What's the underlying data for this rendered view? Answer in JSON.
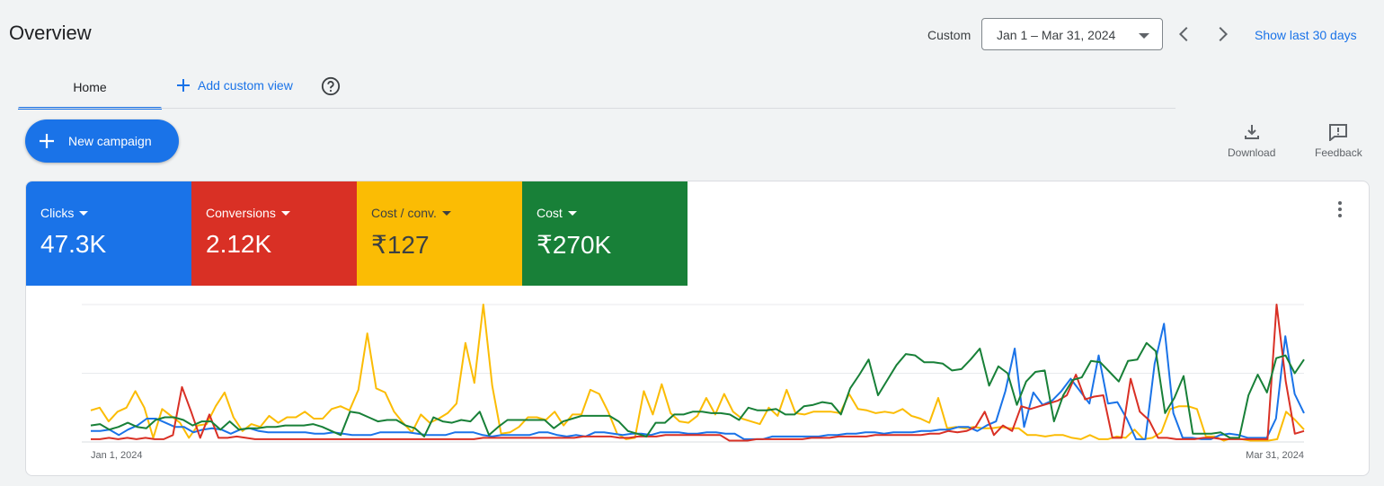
{
  "header": {
    "title": "Overview",
    "custom_label": "Custom",
    "date_range": "Jan 1 – Mar 31, 2024",
    "show_last": "Show last 30 days"
  },
  "tabs": {
    "home": "Home",
    "add_view": "Add custom view"
  },
  "actions": {
    "new_campaign": "New campaign",
    "download": "Download",
    "feedback": "Feedback"
  },
  "metrics": [
    {
      "label": "Clicks",
      "value": "47.3K",
      "color": "#1a73e8"
    },
    {
      "label": "Conversions",
      "value": "2.12K",
      "color": "#d93025"
    },
    {
      "label": "Cost / conv.",
      "value": "₹127",
      "color": "#fbbc04"
    },
    {
      "label": "Cost",
      "value": "₹270K",
      "color": "#188038"
    }
  ],
  "chart_data": {
    "type": "line",
    "x_start_label": "Jan 1, 2024",
    "x_end_label": "Mar 31, 2024",
    "ylim": [
      0,
      100
    ],
    "grid": true,
    "series": [
      {
        "color": "#fbbc04",
        "values": [
          23,
          25,
          15,
          22,
          25,
          37,
          25,
          3,
          24,
          19,
          14,
          3,
          12,
          13,
          26,
          36,
          18,
          8,
          13,
          11,
          19,
          14,
          18,
          18,
          22,
          17,
          17,
          24,
          26,
          23,
          38,
          79,
          39,
          36,
          22,
          14,
          7,
          20,
          14,
          17,
          21,
          28,
          72,
          43,
          100,
          41,
          6,
          7,
          11,
          18,
          18,
          16,
          22,
          12,
          20,
          20,
          38,
          35,
          22,
          6,
          2,
          3,
          37,
          20,
          42,
          21,
          15,
          14,
          19,
          32,
          20,
          35,
          22,
          17,
          15,
          13,
          25,
          19,
          38,
          21,
          20,
          22,
          22,
          22,
          21,
          35,
          24,
          23,
          21,
          22,
          21,
          24,
          19,
          17,
          14,
          32,
          10,
          11,
          10,
          11,
          10,
          10,
          11,
          10,
          10,
          5,
          5,
          4,
          5,
          5,
          3,
          2,
          5,
          2,
          2,
          4,
          3,
          9,
          2,
          3,
          7,
          24,
          26,
          26,
          24,
          4,
          4,
          1,
          3,
          2,
          1,
          1,
          1,
          2,
          22,
          16,
          9
        ]
      },
      {
        "color": "#1a73e8",
        "values": [
          8,
          8,
          9,
          5,
          9,
          12,
          17,
          17,
          14,
          11,
          11,
          7,
          9,
          10,
          9,
          6,
          9,
          10,
          8,
          7,
          7,
          7,
          7,
          7,
          6,
          6,
          7,
          6,
          5,
          5,
          5,
          7,
          7,
          7,
          7,
          6,
          5,
          5,
          5,
          7,
          7,
          7,
          5,
          4,
          5,
          5,
          5,
          5,
          7,
          7,
          5,
          4,
          5,
          4,
          7,
          7,
          6,
          5,
          6,
          6,
          5,
          7,
          7,
          7,
          6,
          6,
          7,
          7,
          6,
          6,
          2,
          2,
          2,
          4,
          4,
          4,
          4,
          4,
          4,
          5,
          5,
          6,
          6,
          7,
          7,
          6,
          7,
          7,
          7,
          8,
          8,
          9,
          9,
          11,
          11,
          8,
          12,
          15,
          37,
          68,
          11,
          36,
          27,
          30,
          37,
          46,
          37,
          28,
          63,
          28,
          29,
          17,
          2,
          2,
          57,
          86,
          21,
          3,
          3,
          2,
          2,
          5,
          6,
          5,
          3,
          3,
          3,
          17,
          77,
          35,
          21
        ]
      },
      {
        "color": "#d93025",
        "values": [
          2,
          2,
          3,
          2,
          3,
          2,
          3,
          2,
          2,
          5,
          40,
          22,
          3,
          20,
          3,
          3,
          4,
          3,
          2,
          2,
          2,
          2,
          2,
          2,
          2,
          2,
          2,
          2,
          2,
          2,
          2,
          2,
          2,
          2,
          2,
          2,
          2,
          2,
          2,
          2,
          2,
          2,
          2,
          3,
          3,
          3,
          3,
          3,
          3,
          3,
          3,
          3,
          3,
          3,
          4,
          4,
          4,
          4,
          3,
          3,
          4,
          4,
          4,
          5,
          5,
          5,
          5,
          5,
          5,
          5,
          1,
          1,
          1,
          2,
          2,
          2,
          2,
          2,
          2,
          3,
          3,
          3,
          4,
          4,
          4,
          4,
          5,
          5,
          5,
          5,
          5,
          5,
          6,
          6,
          8,
          7,
          8,
          11,
          22,
          5,
          12,
          8,
          26,
          24,
          26,
          28,
          30,
          34,
          49,
          31,
          33,
          34,
          3,
          3,
          46,
          22,
          16,
          3,
          3,
          2,
          2,
          2,
          3,
          3,
          2,
          2,
          2,
          2,
          2,
          2,
          100,
          44,
          6,
          8
        ]
      },
      {
        "color": "#188038",
        "values": [
          12,
          13,
          9,
          11,
          14,
          11,
          10,
          16,
          18,
          18,
          16,
          12,
          15,
          15,
          9,
          15,
          9,
          10,
          10,
          11,
          11,
          12,
          12,
          12,
          13,
          11,
          8,
          5,
          22,
          21,
          18,
          15,
          16,
          16,
          12,
          10,
          4,
          18,
          15,
          14,
          16,
          15,
          22,
          5,
          11,
          16,
          16,
          16,
          16,
          16,
          10,
          15,
          17,
          19,
          19,
          19,
          19,
          15,
          8,
          6,
          4,
          14,
          14,
          20,
          20,
          22,
          22,
          21,
          21,
          20,
          16,
          25,
          23,
          23,
          24,
          20,
          20,
          26,
          27,
          29,
          28,
          20,
          39,
          49,
          60,
          34,
          45,
          56,
          64,
          63,
          58,
          58,
          57,
          52,
          53,
          60,
          68,
          41,
          55,
          50,
          27,
          44,
          51,
          52,
          15,
          34,
          45,
          47,
          59,
          58,
          51,
          44,
          59,
          60,
          72,
          66,
          21,
          32,
          48,
          6,
          6,
          6,
          7,
          3,
          3,
          34,
          49,
          36,
          61,
          63,
          50,
          60
        ]
      }
    ]
  }
}
